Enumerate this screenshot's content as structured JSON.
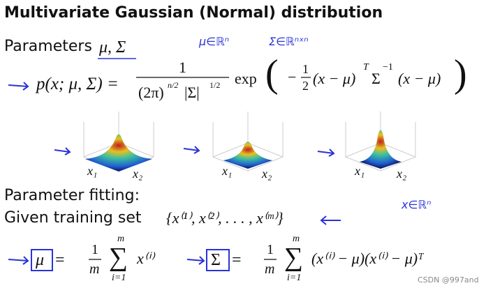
{
  "title": "Multivariate Gaussian (Normal) distribution",
  "parameters": {
    "label": "Parameters",
    "symbols": "μ, Σ",
    "notes": [
      "μ∈ℝⁿ",
      "Σ∈ℝⁿˣⁿ"
    ]
  },
  "density": {
    "lhs": "p(x; μ, Σ) =",
    "numerator": "1",
    "denominator": [
      "(2π)",
      "n/2",
      "|Σ|",
      "1/2"
    ],
    "exp": "exp",
    "open": "(",
    "minus": "−",
    "half": [
      "1",
      "2"
    ],
    "left": "(x − μ)",
    "transpose": "T",
    "sigma": "Σ",
    "inverse": "−1",
    "right": "(x − μ)",
    "close": ")"
  },
  "plots": [
    {
      "x": "x₁",
      "y": "x₂"
    },
    {
      "x": "x₁",
      "y": "x₂"
    },
    {
      "x": "x₁",
      "y": "x₂"
    }
  ],
  "fitting": {
    "label": "Parameter fitting:",
    "given": "Given training set",
    "set": "{x⁽¹⁾, x⁽²⁾, . . . , x⁽ᵐ⁾}",
    "note": "x∈ℝⁿ"
  },
  "mean_estimate": {
    "symbol": "μ",
    "equals": "=",
    "numerator": "1",
    "denominator": "m",
    "sum": "∑",
    "upper": "m",
    "lower": "i=1",
    "term": "x⁽ⁱ⁾"
  },
  "cov_estimate": {
    "symbol": "Σ",
    "equals": "=",
    "numerator": "1",
    "denominator": "m",
    "sum": "∑",
    "upper": "m",
    "lower": "i=1",
    "term": "(x⁽ⁱ⁾ − μ)(x⁽ⁱ⁾ − μ)ᵀ"
  },
  "watermark": "CSDN @997and"
}
